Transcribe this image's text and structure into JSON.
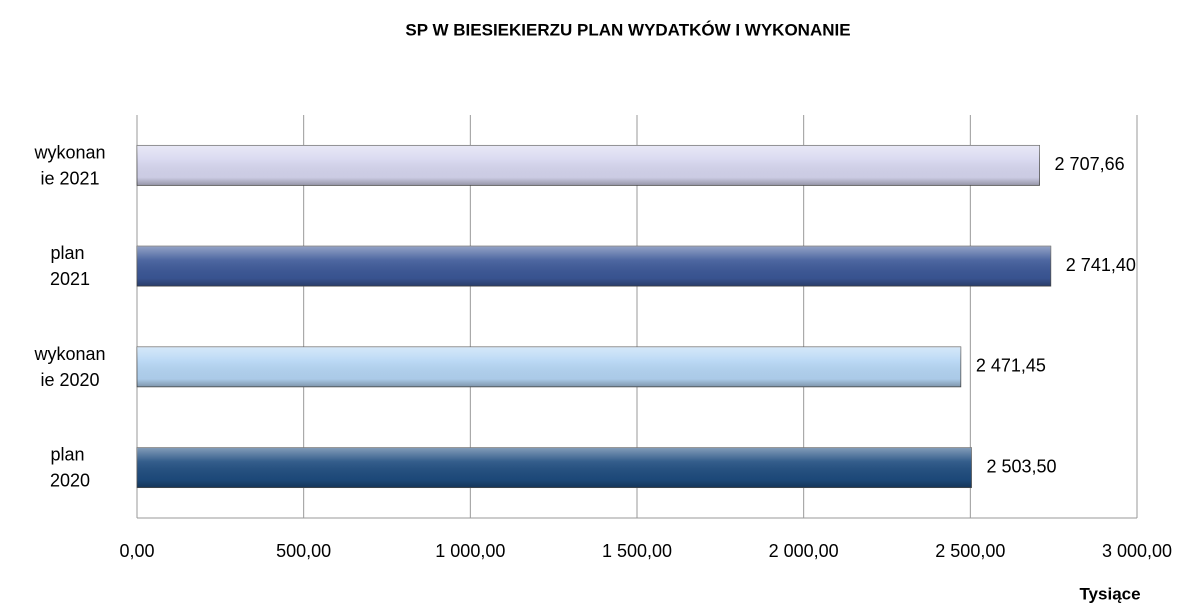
{
  "chart_data": {
    "type": "hbar",
    "title": "SP W BIESIEKIERZU PLAN WYDATKÓW I WYKONANIE",
    "categories": [
      "wykonanie 2021",
      "plan 2021",
      "wykonanie 2020",
      "plan 2020"
    ],
    "values": [
      2707.66,
      2741.4,
      2471.45,
      2503.5
    ],
    "value_labels": [
      "2 707,66",
      "2 741,40",
      "2 471,45",
      "2 503,50"
    ],
    "colors": [
      "#d6d6ef",
      "#3b5797",
      "#b4d5f4",
      "#1e4c7f"
    ],
    "xlim": [
      0,
      3000
    ],
    "xticks": [
      {
        "value": 0,
        "label": "0,00"
      },
      {
        "value": 500,
        "label": "500,00"
      },
      {
        "value": 1000,
        "label": "1 000,00"
      },
      {
        "value": 1500,
        "label": "1 500,00"
      },
      {
        "value": 2000,
        "label": "2 000,00"
      },
      {
        "value": 2500,
        "label": "2 500,00"
      },
      {
        "value": 3000,
        "label": "3 000,00"
      }
    ],
    "xlabel": "Tysiące",
    "grid": true
  }
}
